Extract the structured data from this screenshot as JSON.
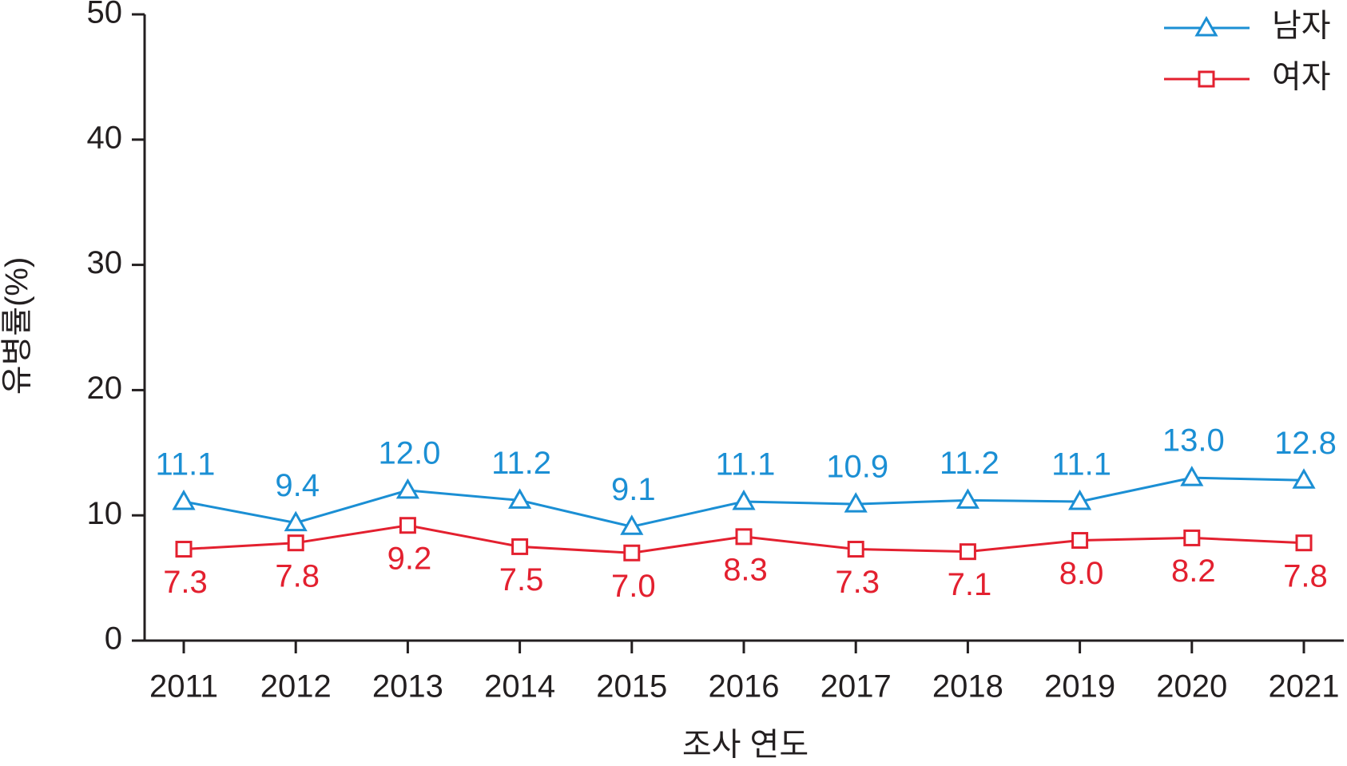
{
  "chart_data": {
    "type": "line",
    "x_label": "조사 연도",
    "y_label": "유병률(%)",
    "categories": [
      "2011",
      "2012",
      "2013",
      "2014",
      "2015",
      "2016",
      "2017",
      "2018",
      "2019",
      "2020",
      "2021"
    ],
    "series": [
      {
        "name": "남자",
        "color": "#1b8fd4",
        "marker": "triangle",
        "values": [
          11.1,
          9.4,
          12.0,
          11.2,
          9.1,
          11.1,
          10.9,
          11.2,
          11.1,
          13.0,
          12.8
        ],
        "value_labels": [
          "11.1",
          "9.4",
          "12.0",
          "11.2",
          "9.1",
          "11.1",
          "10.9",
          "11.2",
          "11.1",
          "13.0",
          "12.8"
        ]
      },
      {
        "name": "여자",
        "color": "#e3202f",
        "marker": "square",
        "values": [
          7.3,
          7.8,
          9.2,
          7.5,
          7.0,
          8.3,
          7.3,
          7.1,
          8.0,
          8.2,
          7.8
        ],
        "value_labels": [
          "7.3",
          "7.8",
          "9.2",
          "7.5",
          "7.0",
          "8.3",
          "7.3",
          "7.1",
          "8.0",
          "8.2",
          "7.8"
        ]
      }
    ],
    "ylim": [
      0,
      50
    ],
    "yticks": [
      0,
      10,
      20,
      30,
      40,
      50
    ],
    "legend": "top-right"
  }
}
